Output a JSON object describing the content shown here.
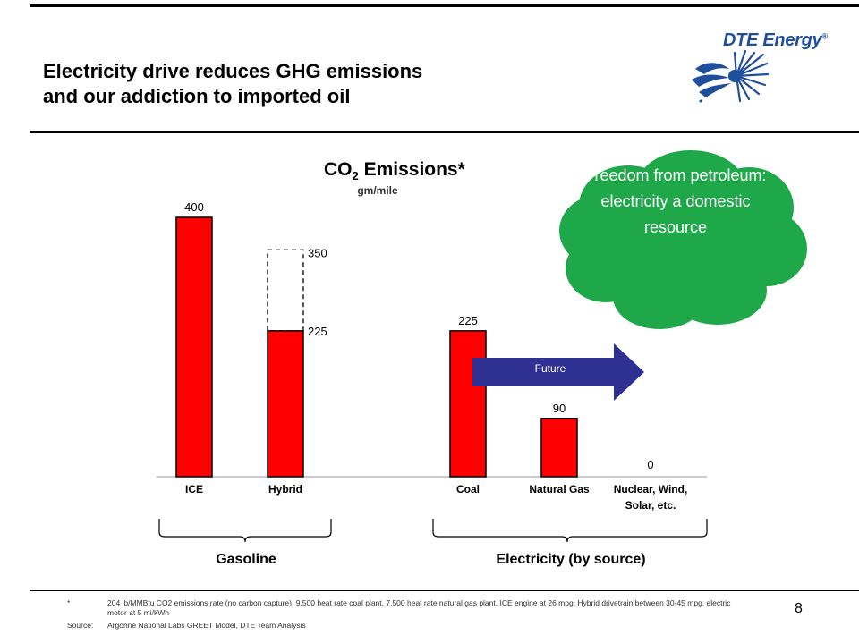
{
  "slide": {
    "title_line1": "Electricity drive reduces GHG emissions",
    "title_line2": "and our addiction to imported oil",
    "logo_text": "DTE Energy",
    "logo_reg": "®",
    "page_number": "8"
  },
  "cloud": {
    "text": "Freedom from petroleum: electricity a domestic resource",
    "color": "#1fa84a"
  },
  "future": {
    "label": "Future",
    "color": "#2e3192"
  },
  "groups": {
    "gasoline": "Gasoline",
    "electricity": "Electricity (by source)"
  },
  "footnote": {
    "marker": "*",
    "text": "204 lb/MMBtu CO2 emissions rate (no carbon capture), 9,500 heat rate coal plant, 7,500 heat rate natural gas plant, ICE engine at 26 mpg, Hybrid drivetrain between 30-45 mpg, electric motor at 5 mi/kWh",
    "source_label": "Source:",
    "source_text": "Argonne National Labs GREET Model, DTE Team Analysis"
  },
  "chart_data": {
    "type": "bar",
    "title_prefix": "CO",
    "title_sub": "2",
    "title_suffix": " Emissions*",
    "subtitle": "gm/mile",
    "categories": [
      "ICE",
      "Hybrid",
      "Coal",
      "Natural Gas",
      "Nuclear, Wind, Solar, etc."
    ],
    "values": [
      400,
      225,
      225,
      90,
      0
    ],
    "value_labels": [
      "400",
      "225",
      "225",
      "90",
      "0"
    ],
    "hybrid_upper": {
      "value": 350,
      "label": "350"
    },
    "ylim": [
      0,
      400
    ],
    "bar_color": "#ff0000",
    "grid": false
  }
}
